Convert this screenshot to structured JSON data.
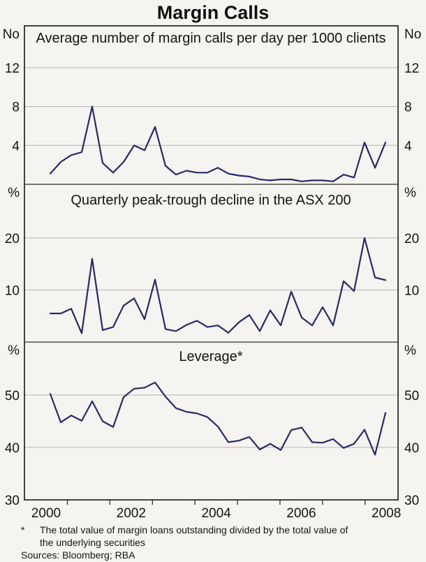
{
  "title": "Margin Calls",
  "colors": {
    "line": "#28286a",
    "grid": "#b3b3b0",
    "frame": "#2e2e2e",
    "background": "#f5f4f1",
    "text": "#141414"
  },
  "x_axis": {
    "labels": [
      "2000",
      "2002",
      "2004",
      "2006",
      "2008"
    ],
    "label_years": [
      2000,
      2002,
      2004,
      2006,
      2008
    ],
    "tick_years": [
      2000.5,
      2001.5,
      2002.5,
      2003.5,
      2004.5,
      2005.5,
      2006.5,
      2007.5
    ],
    "range_years": [
      1999.5,
      2008.3
    ]
  },
  "chart_data": [
    {
      "type": "line",
      "title": "Average number of margin calls per day per 1000 clients",
      "unit_left": "No",
      "unit_right": "No",
      "ylim": [
        0,
        16.3
      ],
      "yticks": [
        4,
        8,
        12
      ],
      "grid": true,
      "legend": "none",
      "x_start": "2000Q1",
      "x_end": "2008Q1",
      "x_step": "quarter",
      "values": [
        1.1,
        2.3,
        3.0,
        3.3,
        8.0,
        2.2,
        1.2,
        2.3,
        4.0,
        3.5,
        5.9,
        1.9,
        1.0,
        1.4,
        1.2,
        1.2,
        1.7,
        1.1,
        0.9,
        0.8,
        0.5,
        0.4,
        0.5,
        0.5,
        0.3,
        0.4,
        0.4,
        0.3,
        1.0,
        0.7,
        4.3,
        1.7,
        4.3
      ]
    },
    {
      "type": "line",
      "title": "Quarterly peak-trough decline in the ASX 200",
      "unit_left": "%",
      "unit_right": "%",
      "ylim": [
        0,
        30.3
      ],
      "yticks": [
        10,
        20
      ],
      "grid": true,
      "legend": "none",
      "x_start": "2000Q1",
      "x_end": "2008Q1",
      "x_step": "quarter",
      "values": [
        5.5,
        5.5,
        6.4,
        1.7,
        16.0,
        2.3,
        2.9,
        7.0,
        8.4,
        4.4,
        12.0,
        2.5,
        2.1,
        3.3,
        4.1,
        2.9,
        3.2,
        1.8,
        3.8,
        5.2,
        2.1,
        6.1,
        3.2,
        9.7,
        4.7,
        3.2,
        6.7,
        3.2,
        11.7,
        9.8,
        20.0,
        12.4,
        11.9
      ]
    },
    {
      "type": "line",
      "title": "Leverage*",
      "unit_left": "%",
      "unit_right": "%",
      "ylim": [
        30,
        60.1
      ],
      "yticks": [
        30,
        40,
        50
      ],
      "grid": true,
      "legend": "none",
      "x_start": "2000Q1",
      "x_end": "2008Q1",
      "x_step": "quarter",
      "values": [
        50.2,
        44.8,
        46.1,
        45.1,
        48.8,
        45.0,
        43.9,
        49.6,
        51.2,
        51.4,
        52.4,
        49.7,
        47.5,
        46.8,
        46.5,
        45.8,
        44.0,
        41.0,
        41.3,
        42.0,
        39.6,
        40.7,
        39.5,
        43.3,
        43.8,
        41.0,
        40.9,
        41.6,
        39.9,
        40.7,
        43.4,
        38.6,
        46.6
      ]
    }
  ],
  "footnote": {
    "marker": "*",
    "line1": "The total value of margin loans outstanding divided by the total value of",
    "line2": "the underlying securities",
    "sources": "Sources: Bloomberg; RBA"
  }
}
